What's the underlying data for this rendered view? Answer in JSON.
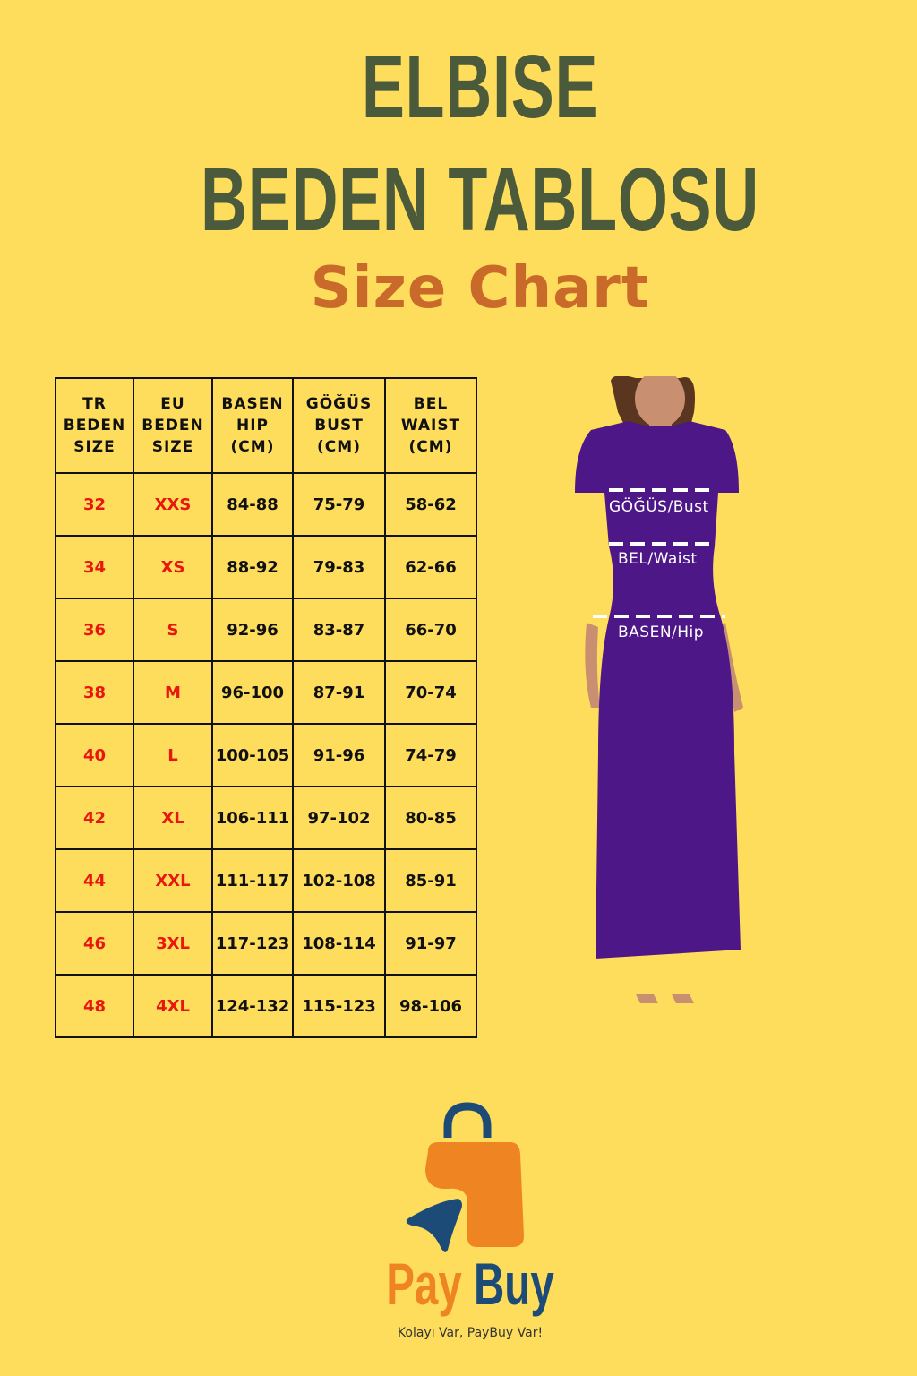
{
  "title": {
    "line1": "ELBISE",
    "line2": "BEDEN TABLOSU",
    "line3": "Size Chart"
  },
  "table": {
    "headers": [
      "TR\nBEDEN\nSIZE",
      "EU\nBEDEN\nSIZE",
      "BASEN\nHIP\n(CM)",
      "GÖĞÜS\nBUST\n(CM)",
      "BEL\nWAIST\n(CM)"
    ],
    "rows": [
      [
        "32",
        "XXS",
        "84-88",
        "75-79",
        "58-62"
      ],
      [
        "34",
        "XS",
        "88-92",
        "79-83",
        "62-66"
      ],
      [
        "36",
        "S",
        "92-96",
        "83-87",
        "66-70"
      ],
      [
        "38",
        "M",
        "96-100",
        "87-91",
        "70-74"
      ],
      [
        "40",
        "L",
        "100-105",
        "91-96",
        "74-79"
      ],
      [
        "42",
        "XL",
        "106-111",
        "97-102",
        "80-85"
      ],
      [
        "44",
        "XXL",
        "111-117",
        "102-108",
        "85-91"
      ],
      [
        "46",
        "3XL",
        "117-123",
        "108-114",
        "91-97"
      ],
      [
        "48",
        "4XL",
        "124-132",
        "115-123",
        "98-106"
      ]
    ]
  },
  "figure": {
    "bust": "GÖĞÜS/Bust",
    "waist": "BEL/Waist",
    "hip": "BASEN/Hip",
    "dress_color": "#4E1787"
  },
  "logo": {
    "pay": "Pay",
    "buy": "Buy",
    "tagline": "Kolayı Var, PayBuy Var!",
    "orange": "#EE8422",
    "blue": "#1D4B78"
  }
}
